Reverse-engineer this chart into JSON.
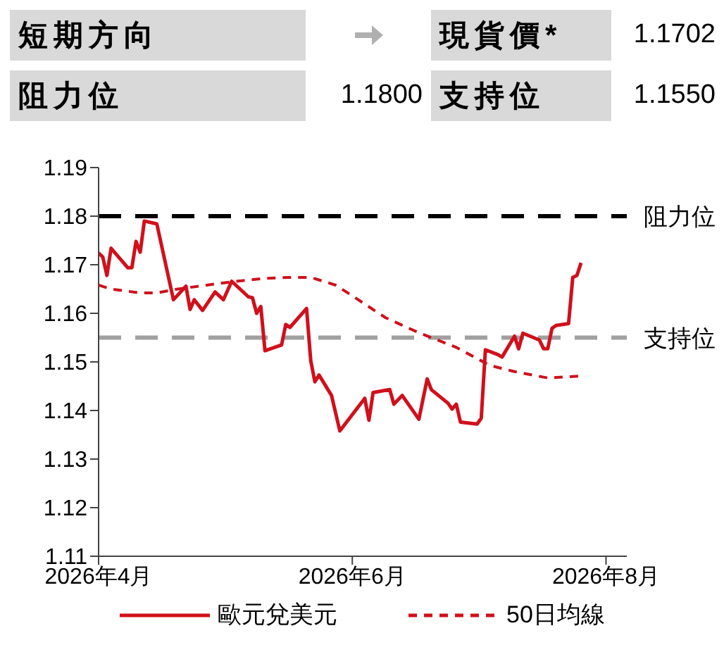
{
  "chart_data": {
    "type": "line",
    "annotations": [
      "短期方向",
      "現貨價*",
      "1.1702",
      "阻力位",
      "1.1800",
      "支持位",
      "1.1550"
    ],
    "xlim": [
      "2026-04-01",
      "2026-08-06"
    ],
    "xticks": [
      {
        "value": "2026-04-01",
        "label": "2026年4月"
      },
      {
        "value": "2026-06-01",
        "label": "2026年6月"
      },
      {
        "value": "2026-08-01",
        "label": "2026年8月"
      }
    ],
    "ylim": [
      1.11,
      1.19
    ],
    "yticks": [
      1.11,
      1.12,
      1.13,
      1.14,
      1.15,
      1.16,
      1.17,
      1.18,
      1.19
    ],
    "grid": false,
    "legend": "bottom",
    "marker": "none",
    "ref_lines": [
      {
        "axis": "y",
        "value": 1.18,
        "label": "阻力位",
        "color": "#000000",
        "line_style": "dashed"
      },
      {
        "axis": "y",
        "value": 1.155,
        "label": "支持位",
        "color": "#a0a0a0",
        "line_style": "dashed"
      }
    ],
    "series": [
      {
        "name": "歐元兌美元",
        "color": "#d0101b",
        "line_style": "solid",
        "x": [
          "2026-04-01",
          "2026-04-02",
          "2026-04-03",
          "2026-04-04",
          "2026-04-08",
          "2026-04-09",
          "2026-04-10",
          "2026-04-11",
          "2026-04-12",
          "2026-04-15",
          "2026-04-19",
          "2026-04-22",
          "2026-04-23",
          "2026-04-24",
          "2026-04-26",
          "2026-04-29",
          "2026-05-01",
          "2026-05-03",
          "2026-05-07",
          "2026-05-08",
          "2026-05-09",
          "2026-05-10",
          "2026-05-11",
          "2026-05-15",
          "2026-05-16",
          "2026-05-17",
          "2026-05-21",
          "2026-05-22",
          "2026-05-23",
          "2026-05-24",
          "2026-05-27",
          "2026-05-29",
          "2026-06-04",
          "2026-06-05",
          "2026-06-06",
          "2026-06-10",
          "2026-06-11",
          "2026-06-13",
          "2026-06-17",
          "2026-06-19",
          "2026-06-20",
          "2026-06-24",
          "2026-06-25",
          "2026-06-26",
          "2026-06-27",
          "2026-07-01",
          "2026-07-02",
          "2026-07-03",
          "2026-07-06",
          "2026-07-07",
          "2026-07-10",
          "2026-07-11",
          "2026-07-12",
          "2026-07-16",
          "2026-07-17",
          "2026-07-18",
          "2026-07-19",
          "2026-07-20",
          "2026-07-23",
          "2026-07-24",
          "2026-07-25",
          "2026-07-26"
        ],
        "values": [
          1.1724,
          1.1716,
          1.1678,
          1.1734,
          1.1694,
          1.1694,
          1.1748,
          1.1726,
          1.179,
          1.1784,
          1.1628,
          1.1656,
          1.1608,
          1.1628,
          1.1606,
          1.1644,
          1.1628,
          1.1666,
          1.1634,
          1.1632,
          1.16,
          1.1614,
          1.1523,
          1.1535,
          1.1577,
          1.1571,
          1.161,
          1.1503,
          1.1459,
          1.1473,
          1.1431,
          1.1358,
          1.1425,
          1.138,
          1.1437,
          1.1443,
          1.1413,
          1.1431,
          1.1382,
          1.1465,
          1.1443,
          1.1415,
          1.1403,
          1.1413,
          1.1376,
          1.1372,
          1.1384,
          1.1525,
          1.1515,
          1.151,
          1.1553,
          1.1527,
          1.1559,
          1.1545,
          1.1527,
          1.1527,
          1.1569,
          1.1575,
          1.1579,
          1.1674,
          1.1678,
          1.1704
        ]
      },
      {
        "name": "50日均線",
        "color": "#d0101b",
        "line_style": "dashed",
        "x": [
          "2026-04-01",
          "2026-04-04",
          "2026-04-11",
          "2026-04-15",
          "2026-04-20",
          "2026-04-27",
          "2026-05-04",
          "2026-05-11",
          "2026-05-17",
          "2026-05-22",
          "2026-05-25",
          "2026-05-28",
          "2026-06-01",
          "2026-06-09",
          "2026-06-17",
          "2026-06-26",
          "2026-07-04",
          "2026-07-10",
          "2026-07-18",
          "2026-07-26"
        ],
        "values": [
          1.1658,
          1.165,
          1.1642,
          1.1642,
          1.165,
          1.1658,
          1.1666,
          1.1672,
          1.1674,
          1.1674,
          1.1666,
          1.1658,
          1.1636,
          1.1591,
          1.156,
          1.153,
          1.1493,
          1.148,
          1.1467,
          1.1471
        ]
      }
    ]
  }
}
